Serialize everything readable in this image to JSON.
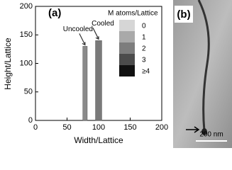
{
  "chart_data": {
    "type": "region",
    "panel_label": "(a)",
    "x_label": "Width/Lattice",
    "y_label": "Height/Lattice",
    "xlim": [
      0,
      200
    ],
    "xticks": [
      0,
      50,
      100,
      150,
      200
    ],
    "ylim": [
      0,
      200
    ],
    "yticks": [
      0,
      50,
      100,
      150,
      200
    ],
    "regions": [
      {
        "name": "Uncooled",
        "xrange": [
          75,
          82
        ],
        "height": 130,
        "color": "#8a8a8a"
      },
      {
        "name": "Cooled",
        "xrange": [
          95,
          105
        ],
        "height": 140,
        "color": "#7a7a7a"
      }
    ],
    "legend": {
      "title": "M atoms/Lattice",
      "entries": [
        {
          "label": "0",
          "color": "#d6d6d6"
        },
        {
          "label": "1",
          "color": "#a9a9a9"
        },
        {
          "label": "2",
          "color": "#7d7d7d"
        },
        {
          "label": "3",
          "color": "#4c4c4c"
        },
        {
          "label": "≥4",
          "color": "#111111"
        }
      ]
    }
  },
  "panel_b": {
    "label": "(b)",
    "scale_bar": "200 nm"
  }
}
